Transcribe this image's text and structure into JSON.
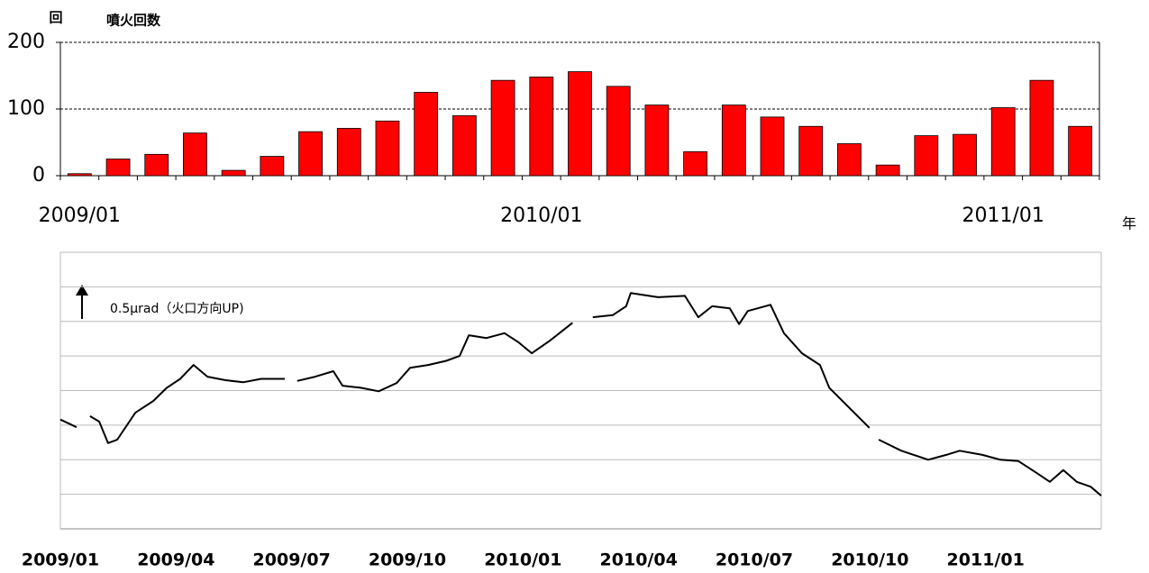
{
  "chart_data": [
    {
      "type": "bar",
      "title": "噴火回数",
      "y_label": "回",
      "x_label": "年",
      "categories": [
        "2009/01",
        null,
        null,
        null,
        null,
        null,
        null,
        null,
        null,
        null,
        null,
        null,
        "2010/01",
        null,
        null,
        null,
        null,
        null,
        null,
        null,
        null,
        null,
        null,
        null,
        "2011/01",
        null,
        null
      ],
      "values": [
        3,
        25,
        32,
        64,
        8,
        29,
        66,
        71,
        82,
        125,
        90,
        143,
        148,
        156,
        134,
        106,
        36,
        106,
        88,
        74,
        48,
        16,
        60,
        62,
        102,
        143,
        74
      ],
      "color": "#ff0000",
      "ylim": [
        0,
        200
      ],
      "yticks": [
        0,
        100,
        200
      ],
      "grid": true
    },
    {
      "type": "line",
      "annotation": "0.5μrad（火口方向UP)",
      "xlim": [
        2009.0,
        2011.25
      ],
      "xticks": [
        {
          "value": 2009.0,
          "label": "2009/01"
        },
        {
          "value": 2009.25,
          "label": "2009/04"
        },
        {
          "value": 2009.5,
          "label": "2009/07"
        },
        {
          "value": 2009.75,
          "label": "2009/10"
        },
        {
          "value": 2010.0,
          "label": "2010/01"
        },
        {
          "value": 2010.25,
          "label": "2010/04"
        },
        {
          "value": 2010.5,
          "label": "2010/07"
        },
        {
          "value": 2010.75,
          "label": "2010/10"
        },
        {
          "value": 2011.0,
          "label": "2011/01"
        }
      ],
      "ylim": [
        0,
        4
      ],
      "yticks": [
        0,
        0.5,
        1,
        1.5,
        2,
        2.5,
        3,
        3.5,
        4
      ],
      "ytick_labels": false,
      "grid": true,
      "color": "#000000",
      "x": [
        2009.0,
        2009.035,
        null,
        2009.064,
        2009.084,
        2009.103,
        2009.123,
        2009.162,
        2009.201,
        2009.23,
        2009.259,
        2009.288,
        2009.318,
        2009.357,
        2009.395,
        2009.434,
        2009.485,
        null,
        2009.512,
        2009.551,
        2009.59,
        2009.61,
        2009.649,
        2009.688,
        2009.727,
        2009.756,
        2009.795,
        2009.834,
        2009.863,
        2009.883,
        2009.921,
        2009.96,
        2009.99,
        2010.019,
        2010.058,
        2010.107,
        null,
        2010.151,
        2010.194,
        2010.223,
        2010.233,
        2010.292,
        2010.35,
        2010.379,
        2010.409,
        2010.447,
        2010.467,
        2010.486,
        2010.535,
        2010.564,
        2010.603,
        2010.642,
        2010.662,
        2010.701,
        2010.749,
        null,
        2010.769,
        2010.818,
        2010.876,
        2010.915,
        2010.944,
        2010.993,
        2011.032,
        2011.071,
        2011.11,
        2011.139,
        2011.168,
        2011.197,
        2011.227,
        2011.25
      ],
      "values": [
        1.58,
        1.47,
        null,
        1.63,
        1.55,
        1.24,
        1.29,
        1.68,
        1.85,
        2.04,
        2.17,
        2.37,
        2.2,
        2.15,
        2.12,
        2.17,
        2.17,
        null,
        2.14,
        2.2,
        2.28,
        2.07,
        2.04,
        1.99,
        2.11,
        2.33,
        2.37,
        2.43,
        2.5,
        2.8,
        2.76,
        2.83,
        2.7,
        2.54,
        2.72,
        2.98,
        null,
        3.06,
        3.09,
        3.22,
        3.41,
        3.35,
        3.37,
        3.06,
        3.22,
        3.19,
        2.96,
        3.15,
        3.24,
        2.83,
        2.54,
        2.37,
        2.04,
        1.78,
        1.46,
        null,
        1.29,
        1.13,
        1.0,
        1.07,
        1.13,
        1.07,
        1.0,
        0.98,
        0.81,
        0.68,
        0.85,
        0.68,
        0.61,
        0.48
      ]
    }
  ]
}
